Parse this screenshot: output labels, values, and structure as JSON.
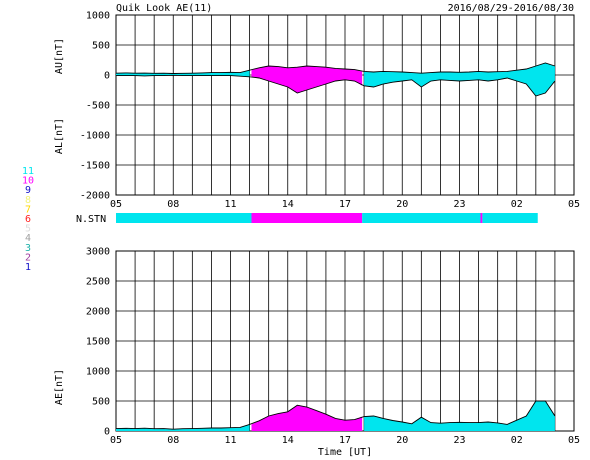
{
  "header": {
    "title": "Quik Look AE(11)",
    "date_range": "2016/08/29-2016/08/30"
  },
  "station_key": {
    "items": [
      {
        "label": "11",
        "color": "#00e5ee"
      },
      {
        "label": "10",
        "color": "#ff00ff"
      },
      {
        "label": "9",
        "color": "#1010c8"
      },
      {
        "label": "8",
        "color": "#f2f27a"
      },
      {
        "label": "7",
        "color": "#ffd700"
      },
      {
        "label": "6",
        "color": "#ff2020"
      },
      {
        "label": "5",
        "color": "#dddddd"
      },
      {
        "label": "4",
        "color": "#a0a0a0"
      },
      {
        "label": "3",
        "color": "#20b2aa"
      },
      {
        "label": "2",
        "color": "#a040a0"
      },
      {
        "label": "1",
        "color": "#1010c8"
      }
    ]
  },
  "nstn_label": "N.STN",
  "chart_data": [
    {
      "type": "area",
      "ylabel_top": "AU[nT]",
      "ylabel_bottom": "AL[nT]",
      "yticks": [
        1000,
        500,
        0,
        -500,
        -1000,
        -1500,
        -2000
      ],
      "ylim": [
        -2000,
        1000
      ],
      "xlim": [
        5,
        29
      ],
      "xticks": [
        "05",
        "08",
        "11",
        "14",
        "17",
        "20",
        "23",
        "02",
        "05"
      ],
      "x": [
        5,
        5.5,
        6,
        6.5,
        7,
        7.5,
        8,
        8.5,
        9,
        9.5,
        10,
        10.5,
        11,
        11.5,
        12,
        12.5,
        13,
        13.5,
        14,
        14.5,
        15,
        15.5,
        16,
        16.5,
        17,
        17.5,
        18,
        18.5,
        19,
        19.5,
        20,
        20.5,
        21,
        21.5,
        22,
        22.5,
        23,
        23.5,
        24,
        24.5,
        25,
        25.5,
        26,
        26.5,
        27,
        27.5,
        28
      ],
      "au": [
        30,
        35,
        30,
        32,
        28,
        30,
        25,
        28,
        30,
        35,
        40,
        40,
        45,
        40,
        80,
        120,
        150,
        140,
        120,
        130,
        150,
        140,
        130,
        110,
        100,
        90,
        60,
        50,
        60,
        55,
        50,
        40,
        30,
        40,
        50,
        50,
        45,
        50,
        60,
        50,
        55,
        60,
        80,
        100,
        150,
        200,
        150
      ],
      "al": [
        -10,
        -10,
        -10,
        -15,
        -10,
        -10,
        -5,
        -10,
        -10,
        -10,
        -10,
        -10,
        -10,
        -20,
        -30,
        -50,
        -100,
        -150,
        -200,
        -300,
        -250,
        -200,
        -150,
        -100,
        -80,
        -100,
        -180,
        -200,
        -150,
        -120,
        -100,
        -80,
        -200,
        -100,
        -80,
        -90,
        -100,
        -90,
        -80,
        -100,
        -80,
        -50,
        -100,
        -150,
        -350,
        -300,
        -100
      ],
      "fill_segments": [
        {
          "from": 5,
          "to": 12.1,
          "color": "#00e5ee"
        },
        {
          "from": 12.1,
          "to": 17.9,
          "color": "#ff00ff"
        },
        {
          "from": 17.9,
          "to": 28,
          "color": "#00e5ee"
        }
      ]
    },
    {
      "type": "area",
      "ylabel": "AE[nT]",
      "xlabel": "Time [UT]",
      "yticks": [
        3000,
        2500,
        2000,
        1500,
        1000,
        500,
        0
      ],
      "ylim": [
        0,
        3000
      ],
      "xlim": [
        5,
        29
      ],
      "xticks": [
        "05",
        "08",
        "11",
        "14",
        "17",
        "20",
        "23",
        "02",
        "05"
      ],
      "x": [
        5,
        5.5,
        6,
        6.5,
        7,
        7.5,
        8,
        8.5,
        9,
        9.5,
        10,
        10.5,
        11,
        11.5,
        12,
        12.5,
        13,
        13.5,
        14,
        14.5,
        15,
        15.5,
        16,
        16.5,
        17,
        17.5,
        18,
        18.5,
        19,
        19.5,
        20,
        20.5,
        21,
        21.5,
        22,
        22.5,
        23,
        23.5,
        24,
        24.5,
        25,
        25.5,
        26,
        26.5,
        27,
        27.5,
        28
      ],
      "ae": [
        40,
        45,
        40,
        47,
        38,
        40,
        30,
        38,
        40,
        45,
        50,
        50,
        55,
        60,
        110,
        170,
        250,
        290,
        320,
        430,
        400,
        340,
        280,
        210,
        180,
        190,
        240,
        250,
        210,
        175,
        150,
        120,
        230,
        140,
        130,
        140,
        145,
        140,
        140,
        150,
        135,
        110,
        180,
        250,
        500,
        500,
        250
      ],
      "fill_segments": [
        {
          "from": 5,
          "to": 12.1,
          "color": "#00e5ee"
        },
        {
          "from": 12.1,
          "to": 17.9,
          "color": "#ff00ff"
        },
        {
          "from": 17.9,
          "to": 28,
          "color": "#00e5ee"
        }
      ]
    }
  ],
  "nstn_bar": {
    "segments": [
      {
        "from": 5,
        "to": 12.1,
        "color": "#00e5ee"
      },
      {
        "from": 12.1,
        "to": 17.9,
        "color": "#ff00ff"
      },
      {
        "from": 17.9,
        "to": 24.1,
        "color": "#00e5ee"
      },
      {
        "from": 24.1,
        "to": 24.2,
        "color": "#ff00ff"
      },
      {
        "from": 24.2,
        "to": 27.1,
        "color": "#00e5ee"
      }
    ]
  }
}
